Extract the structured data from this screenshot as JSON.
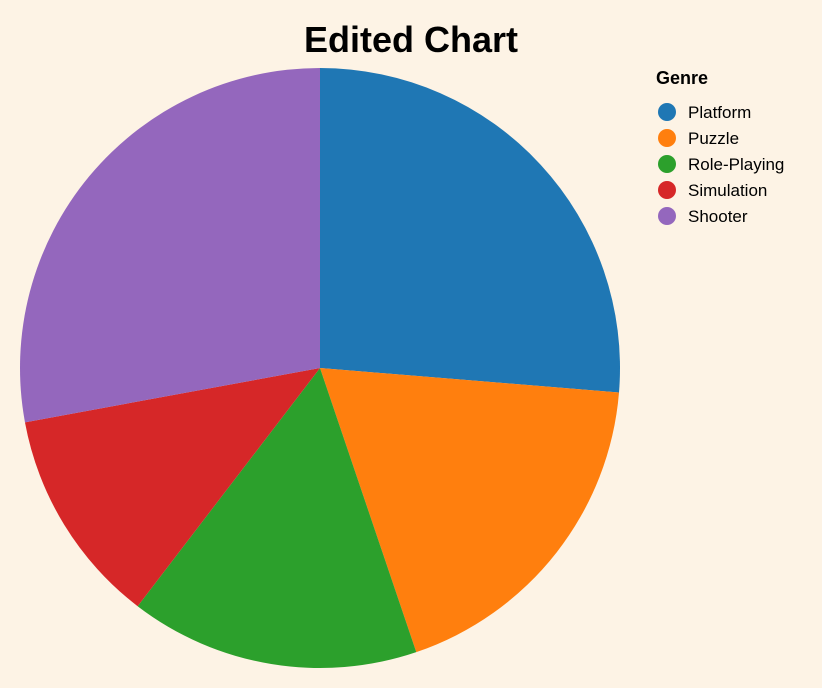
{
  "background": "#fdf3e5",
  "chart_data": {
    "type": "pie",
    "title": "Edited Chart",
    "legend_title": "Genre",
    "legend_position": "top-right",
    "categories": [
      "Platform",
      "Puzzle",
      "Role-Playing",
      "Simulation",
      "Shooter"
    ],
    "values": [
      26.3,
      18.5,
      15.6,
      11.7,
      27.9
    ],
    "colors": [
      "#1f77b4",
      "#ff7f0e",
      "#2ca02c",
      "#d62728",
      "#9467bd"
    ]
  }
}
